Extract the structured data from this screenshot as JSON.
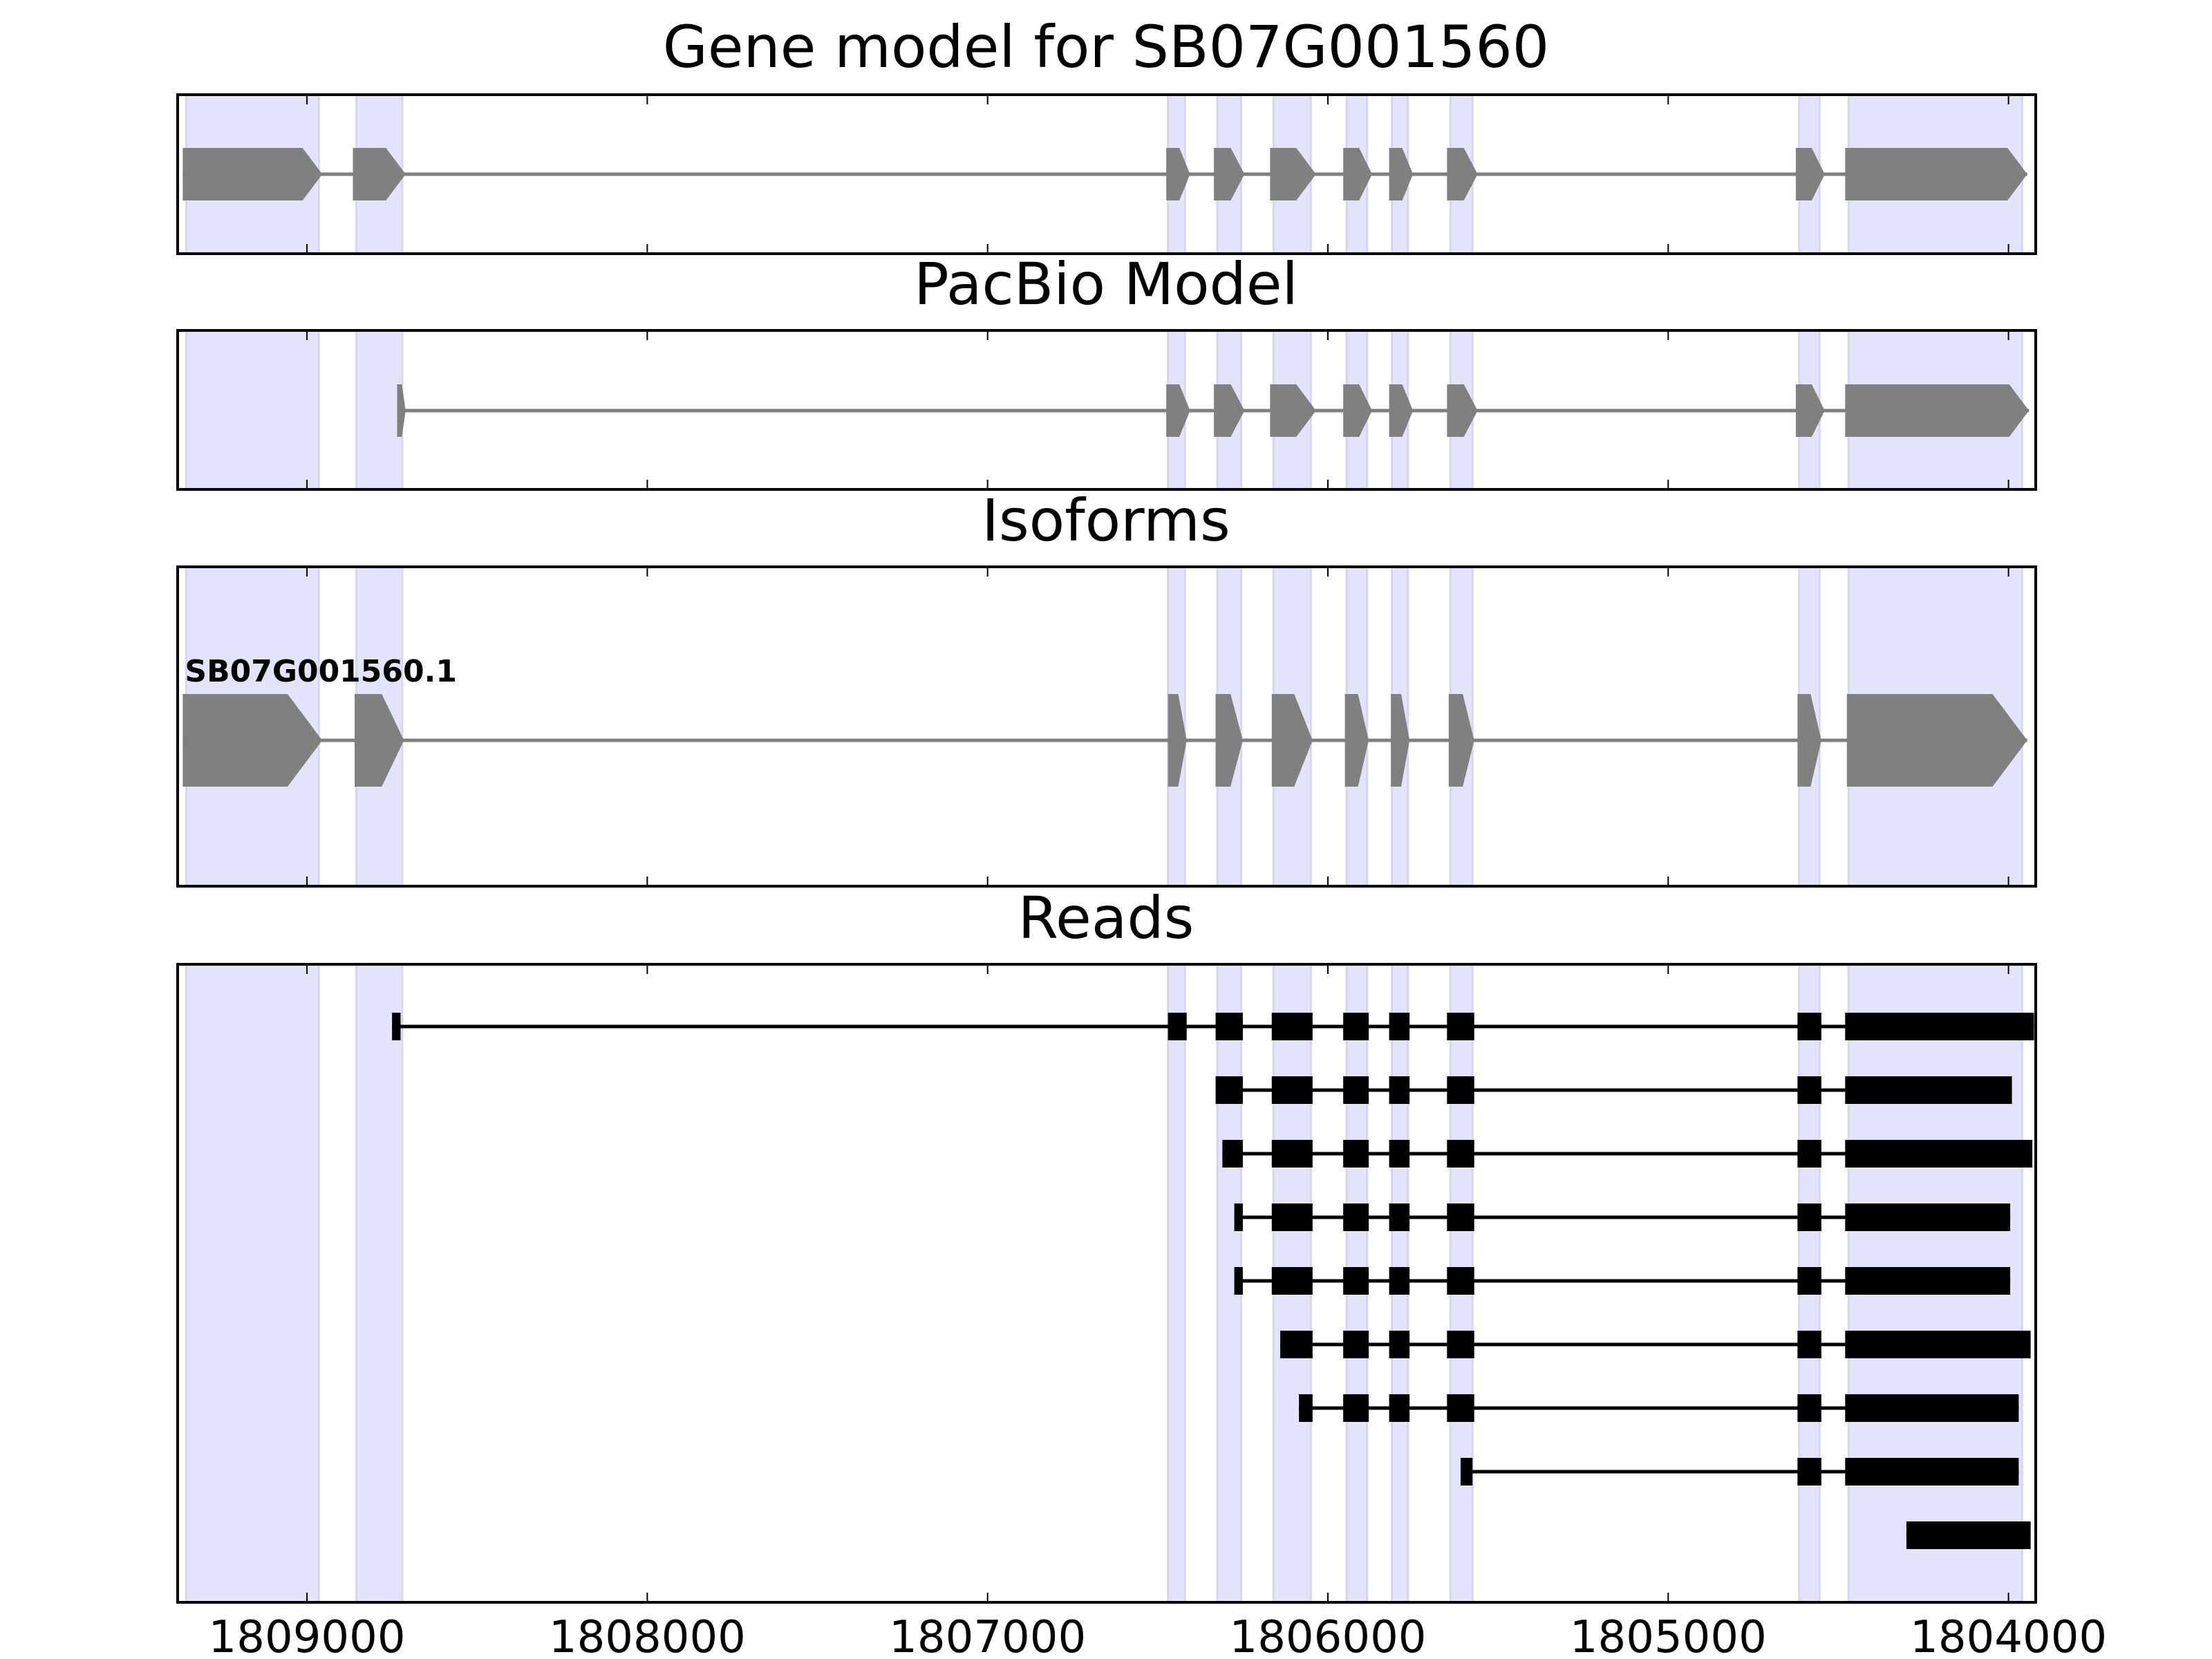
{
  "chart_data": {
    "type": "gene_structure",
    "x_axis": {
      "range": [
        1809380,
        1803920
      ],
      "direction": "reversed",
      "ticks": [
        1809000,
        1808000,
        1807000,
        1806000,
        1805000,
        1804000
      ],
      "tick_labels": [
        "1809000",
        "1808000",
        "1807000",
        "1806000",
        "1805000",
        "1804000"
      ]
    },
    "colors": {
      "feature": "#808080",
      "read": "#000000",
      "exon_highlight": "#e3e3fb",
      "axes": "#000000"
    },
    "highlight_regions": [
      [
        1809355,
        1808965
      ],
      [
        1808855,
        1808720
      ],
      [
        1806470,
        1806420
      ],
      [
        1806325,
        1806255
      ],
      [
        1806160,
        1806050
      ],
      [
        1805945,
        1805885
      ],
      [
        1805812,
        1805765
      ],
      [
        1805640,
        1805575
      ],
      [
        1804615,
        1804555
      ],
      [
        1804470,
        1803960
      ]
    ],
    "panels": [
      {
        "id": "gene-model",
        "title": "Gene model for SB07G001560",
        "transcripts": [
          {
            "label": "",
            "start": 1809365,
            "end": 1803945,
            "exons": [
              [
                1809365,
                1808955
              ],
              [
                1808865,
                1808710
              ],
              [
                1806475,
                1806405
              ],
              [
                1806335,
                1806245
              ],
              [
                1806170,
                1806035
              ],
              [
                1805955,
                1805870
              ],
              [
                1805820,
                1805750
              ],
              [
                1805650,
                1805560
              ],
              [
                1804625,
                1804540
              ],
              [
                1804480,
                1803945
              ]
            ]
          }
        ]
      },
      {
        "id": "pacbio-model",
        "title": "PacBio Model",
        "transcripts": [
          {
            "label": "",
            "start": 1808735,
            "end": 1803940,
            "exons": [
              [
                1808735,
                1808710
              ],
              [
                1806475,
                1806405
              ],
              [
                1806335,
                1806245
              ],
              [
                1806170,
                1806035
              ],
              [
                1805955,
                1805870
              ],
              [
                1805820,
                1805750
              ],
              [
                1805650,
                1805560
              ],
              [
                1804625,
                1804540
              ],
              [
                1804480,
                1803940
              ]
            ]
          }
        ]
      },
      {
        "id": "isoforms",
        "title": "Isoforms",
        "transcripts": [
          {
            "label": "SB07G001560.1",
            "start": 1809365,
            "end": 1803945,
            "exons": [
              [
                1809365,
                1808955
              ],
              [
                1808860,
                1808715
              ],
              [
                1806470,
                1806415
              ],
              [
                1806330,
                1806250
              ],
              [
                1806165,
                1806045
              ],
              [
                1805950,
                1805880
              ],
              [
                1805815,
                1805760
              ],
              [
                1805645,
                1805570
              ],
              [
                1804620,
                1804550
              ],
              [
                1804475,
                1803945
              ]
            ]
          }
        ]
      },
      {
        "id": "reads",
        "title": "Reads",
        "reads": [
          {
            "start": 1808750,
            "end": 1803925,
            "exons": [
              [
                1808750,
                1808725
              ],
              [
                1806470,
                1806415
              ],
              [
                1806330,
                1806250
              ],
              [
                1806165,
                1806045
              ],
              [
                1805955,
                1805880
              ],
              [
                1805820,
                1805760
              ],
              [
                1805650,
                1805570
              ],
              [
                1804620,
                1804550
              ],
              [
                1804480,
                1803925
              ]
            ]
          },
          {
            "start": 1806330,
            "end": 1803990,
            "exons": [
              [
                1806330,
                1806250
              ],
              [
                1806165,
                1806045
              ],
              [
                1805955,
                1805880
              ],
              [
                1805820,
                1805760
              ],
              [
                1805650,
                1805570
              ],
              [
                1804620,
                1804550
              ],
              [
                1804480,
                1803990
              ]
            ]
          },
          {
            "start": 1806310,
            "end": 1803930,
            "exons": [
              [
                1806310,
                1806250
              ],
              [
                1806165,
                1806045
              ],
              [
                1805955,
                1805880
              ],
              [
                1805820,
                1805760
              ],
              [
                1805650,
                1805570
              ],
              [
                1804620,
                1804550
              ],
              [
                1804480,
                1803930
              ]
            ]
          },
          {
            "start": 1806275,
            "end": 1803995,
            "exons": [
              [
                1806275,
                1806250
              ],
              [
                1806165,
                1806045
              ],
              [
                1805955,
                1805880
              ],
              [
                1805820,
                1805760
              ],
              [
                1805650,
                1805570
              ],
              [
                1804620,
                1804550
              ],
              [
                1804480,
                1803995
              ]
            ]
          },
          {
            "start": 1806275,
            "end": 1803995,
            "exons": [
              [
                1806275,
                1806250
              ],
              [
                1806165,
                1806045
              ],
              [
                1805955,
                1805880
              ],
              [
                1805820,
                1805760
              ],
              [
                1805650,
                1805570
              ],
              [
                1804620,
                1804550
              ],
              [
                1804480,
                1803995
              ]
            ]
          },
          {
            "start": 1806140,
            "end": 1803935,
            "exons": [
              [
                1806140,
                1806045
              ],
              [
                1805955,
                1805880
              ],
              [
                1805820,
                1805760
              ],
              [
                1805650,
                1805570
              ],
              [
                1804620,
                1804550
              ],
              [
                1804480,
                1803935
              ]
            ]
          },
          {
            "start": 1806085,
            "end": 1803970,
            "exons": [
              [
                1806085,
                1806045
              ],
              [
                1805955,
                1805880
              ],
              [
                1805820,
                1805760
              ],
              [
                1805650,
                1805570
              ],
              [
                1804620,
                1804550
              ],
              [
                1804480,
                1803970
              ]
            ]
          },
          {
            "start": 1805610,
            "end": 1803970,
            "exons": [
              [
                1805610,
                1805575
              ],
              [
                1804620,
                1804550
              ],
              [
                1804480,
                1803970
              ]
            ]
          },
          {
            "start": 1804300,
            "end": 1803935,
            "exons": [
              [
                1804300,
                1803935
              ]
            ]
          }
        ]
      }
    ]
  }
}
